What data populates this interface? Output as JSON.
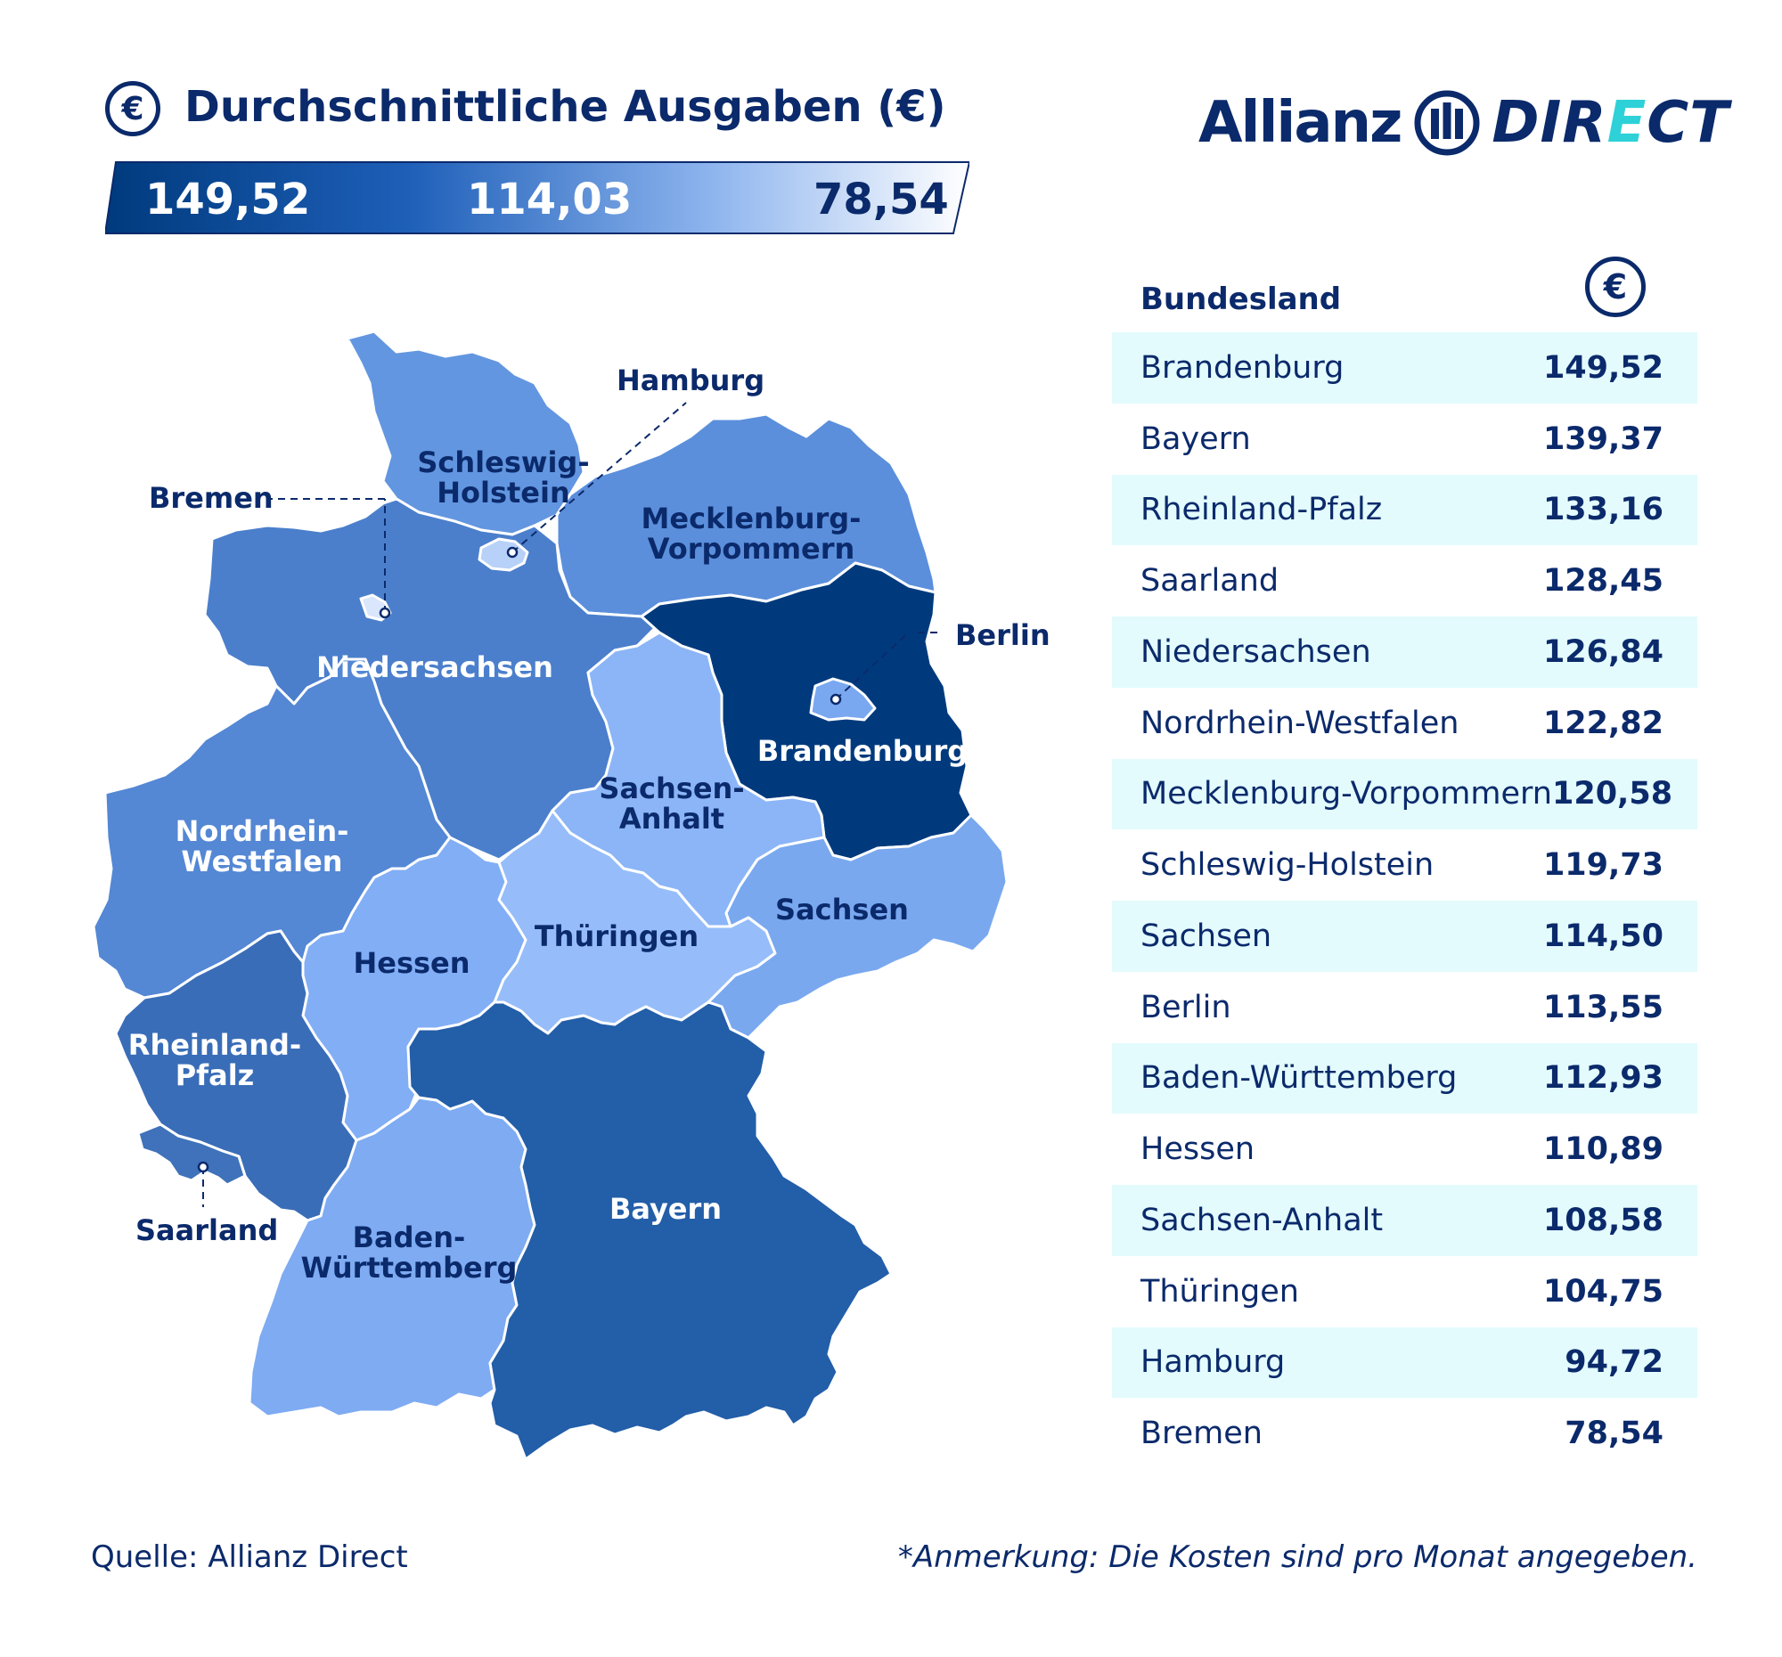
{
  "header": {
    "title": "Durchschnittliche Ausgaben (€)",
    "currency_symbol": "€",
    "scale_values": [
      "149,52",
      "114,03",
      "78,54"
    ]
  },
  "logo": {
    "brand": "Allianz",
    "product_prefix": "DIR",
    "product_accent": "E",
    "product_suffix": "CT"
  },
  "table": {
    "header_label": "Bundesland",
    "header_icon": "€",
    "rows": [
      {
        "state": "Brandenburg",
        "value": "149,52"
      },
      {
        "state": "Bayern",
        "value": "139,37"
      },
      {
        "state": "Rheinland-Pfalz",
        "value": "133,16"
      },
      {
        "state": "Saarland",
        "value": "128,45"
      },
      {
        "state": "Niedersachsen",
        "value": "126,84"
      },
      {
        "state": "Nordrhein-Westfalen",
        "value": "122,82"
      },
      {
        "state": "Mecklenburg-Vorpommern",
        "value": "120,58"
      },
      {
        "state": "Schleswig-Holstein",
        "value": "119,73"
      },
      {
        "state": "Sachsen",
        "value": "114,50"
      },
      {
        "state": "Berlin",
        "value": "113,55"
      },
      {
        "state": "Baden-Württemberg",
        "value": "112,93"
      },
      {
        "state": "Hessen",
        "value": "110,89"
      },
      {
        "state": "Sachsen-Anhalt",
        "value": "108,58"
      },
      {
        "state": "Thüringen",
        "value": "104,75"
      },
      {
        "state": "Hamburg",
        "value": "94,72"
      },
      {
        "state": "Bremen",
        "value": "78,54"
      }
    ]
  },
  "map_labels": {
    "schleswig_holstein": [
      "Schleswig-",
      "Holstein"
    ],
    "mecklenburg_vorpommern": [
      "Mecklenburg-",
      "Vorpommern"
    ],
    "niedersachsen": "Niedersachsen",
    "brandenburg": "Brandenburg",
    "sachsen_anhalt": [
      "Sachsen-",
      "Anhalt"
    ],
    "nordrhein_westfalen": [
      "Nordrhein-",
      "Westfalen"
    ],
    "sachsen": "Sachsen",
    "thueringen": "Thüringen",
    "hessen": "Hessen",
    "rheinland_pfalz": [
      "Rheinland-",
      "Pfalz"
    ],
    "bayern": "Bayern",
    "baden_wuerttemberg": [
      "Baden-",
      "Württemberg"
    ],
    "hamburg": "Hamburg",
    "bremen": "Bremen",
    "berlin": "Berlin",
    "saarland": "Saarland"
  },
  "colors": {
    "text_navy": "#0b2a6b",
    "row_highlight": "#e3fbfd",
    "accent_cyan": "#2ed1d8",
    "brandenburg": "#003a7d",
    "bayern": "#235ea8",
    "rheinland_pfalz": "#3a6db8",
    "saarland": "#3f72ba",
    "niedersachsen": "#4b7fcc",
    "nordrhein_westfalen": "#5487d4",
    "mecklenburg_vorpommern": "#5b8fdc",
    "schleswig_holstein": "#6396e0",
    "sachsen": "#79a8ef",
    "berlin": "#7aa8f0",
    "baden_wuerttemberg": "#7eabf2",
    "hessen": "#82aef5",
    "sachsen_anhalt": "#8bb5f7",
    "thueringen": "#96bdf9",
    "hamburg": "#b8d1f8",
    "bremen": "#d9e6fb"
  },
  "footer": {
    "source": "Quelle: Allianz Direct",
    "note": "*Anmerkung: Die Kosten sind pro Monat angegeben."
  }
}
